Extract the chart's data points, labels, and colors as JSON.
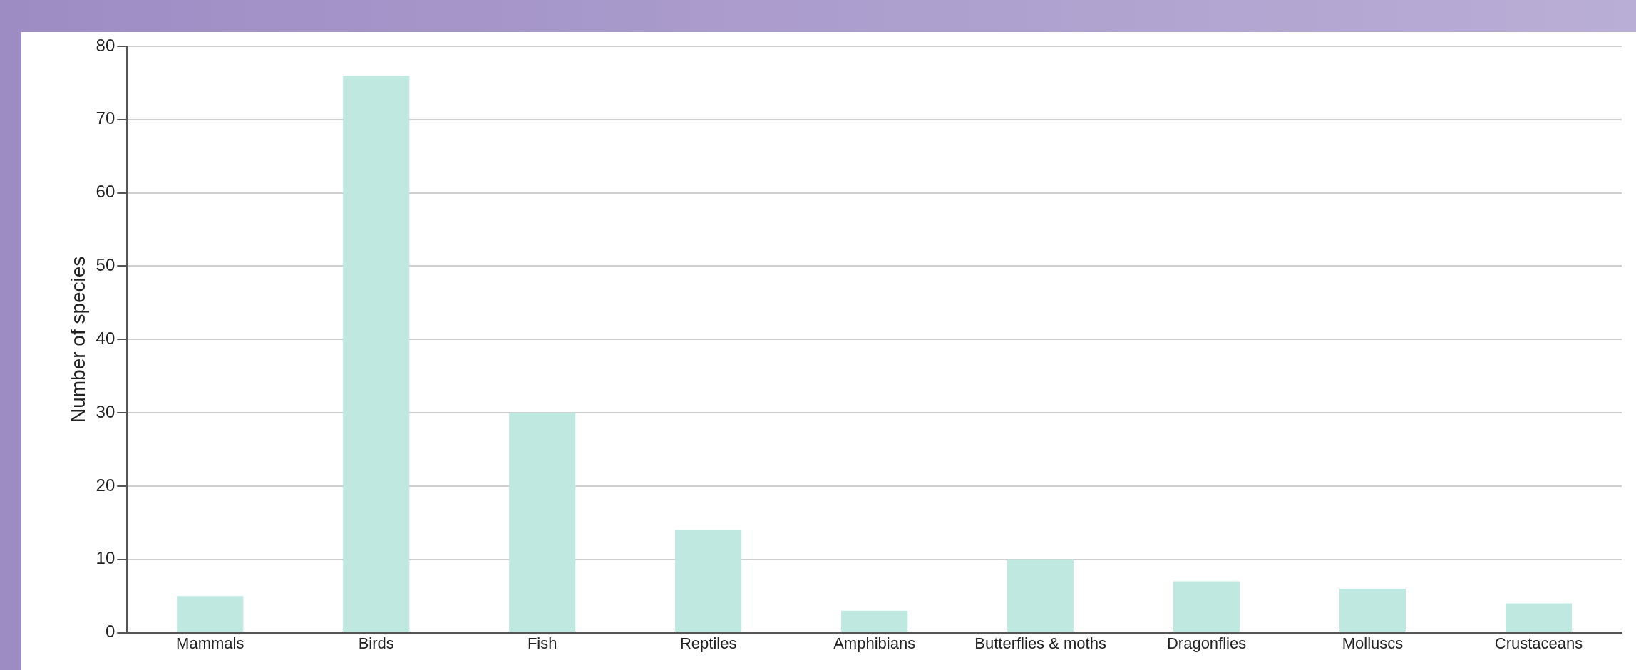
{
  "chart_data": {
    "type": "bar",
    "ylabel": "Number of species",
    "categories": [
      "Mammals",
      "Birds",
      "Fish",
      "Reptiles",
      "Amphibians",
      "Butterflies & moths",
      "Dragonflies",
      "Molluscs",
      "Crustaceans"
    ],
    "values": [
      5,
      76,
      30,
      14,
      3,
      10,
      7,
      6,
      4
    ],
    "color": "#bfe9e0",
    "ylim": [
      0,
      80
    ],
    "yticks": [
      0,
      10,
      20,
      30,
      40,
      50,
      60,
      70,
      80
    ],
    "grid": "y"
  }
}
